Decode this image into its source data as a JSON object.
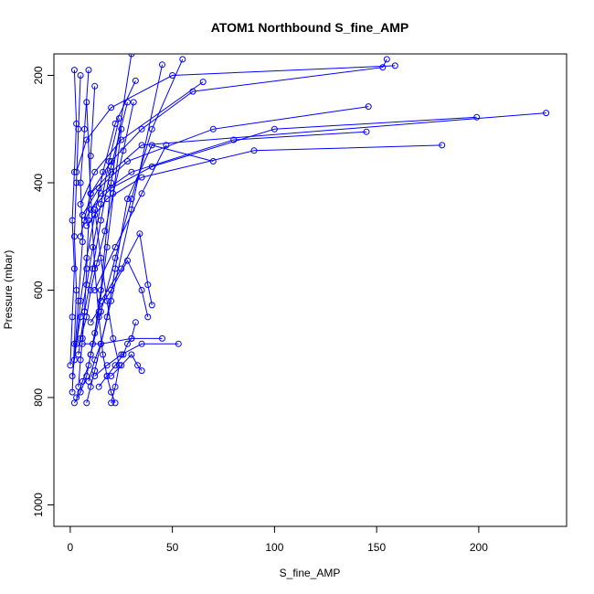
{
  "chart_data": {
    "type": "line",
    "title": "ATOM1 Northbound S_fine_AMP",
    "xlabel": "S_fine_AMP",
    "ylabel": "Pressure (mbar)",
    "xlim": [
      -8,
      243
    ],
    "ylim": [
      1040,
      160
    ],
    "y_reversed": true,
    "xticks": [
      0,
      50,
      100,
      150,
      200
    ],
    "yticks": [
      200,
      400,
      600,
      800,
      1000
    ],
    "grid": false,
    "legend": "none",
    "colors": {
      "series": "#0000ff",
      "axis": "#000000",
      "background": "#ffffff"
    },
    "series": [
      {
        "x": [
          2,
          5,
          8,
          10,
          12,
          15,
          20,
          30
        ],
        "y": [
          810,
          790,
          760,
          720,
          680,
          600,
          400,
          160
        ]
      },
      {
        "x": [
          3,
          6,
          9,
          11,
          14,
          18,
          25
        ],
        "y": [
          800,
          770,
          740,
          700,
          640,
          520,
          300
        ]
      },
      {
        "x": [
          8,
          10,
          12,
          15,
          20,
          30,
          45
        ],
        "y": [
          810,
          780,
          750,
          700,
          620,
          450,
          180
        ]
      },
      {
        "x": [
          22,
          20,
          18,
          16,
          14,
          12,
          10,
          8
        ],
        "y": [
          810,
          790,
          760,
          720,
          650,
          560,
          420,
          250
        ]
      },
      {
        "x": [
          1,
          2,
          3,
          2,
          3,
          4,
          5
        ],
        "y": [
          790,
          700,
          600,
          500,
          400,
          300,
          200
        ]
      },
      {
        "x": [
          4,
          5,
          6,
          7,
          8,
          9,
          10,
          12
        ],
        "y": [
          780,
          730,
          690,
          640,
          560,
          470,
          350,
          220
        ]
      },
      {
        "x": [
          9,
          12,
          15,
          18,
          22,
          28,
          40,
          70
        ],
        "y": [
          770,
          730,
          700,
          650,
          560,
          430,
          330,
          360
        ]
      },
      {
        "x": [
          12,
          18,
          25,
          35,
          53
        ],
        "y": [
          760,
          740,
          720,
          700,
          700
        ]
      },
      {
        "x": [
          6,
          15,
          30,
          45
        ],
        "y": [
          700,
          700,
          690,
          690
        ]
      },
      {
        "x": [
          5,
          10,
          20,
          35,
          233
        ],
        "y": [
          500,
          420,
          380,
          330,
          270
        ]
      },
      {
        "x": [
          10,
          20,
          40,
          100,
          199
        ],
        "y": [
          450,
          410,
          370,
          300,
          278
        ]
      },
      {
        "x": [
          8,
          18,
          35,
          90,
          182
        ],
        "y": [
          480,
          430,
          390,
          340,
          330
        ]
      },
      {
        "x": [
          7,
          15,
          30,
          80,
          145
        ],
        "y": [
          470,
          420,
          380,
          320,
          305
        ]
      },
      {
        "x": [
          6,
          14,
          28,
          70,
          146
        ],
        "y": [
          460,
          410,
          360,
          300,
          258
        ]
      },
      {
        "x": [
          5,
          12,
          25,
          65
        ],
        "y": [
          440,
          380,
          320,
          212
        ]
      },
      {
        "x": [
          10,
          20,
          35,
          60,
          153,
          155
        ],
        "y": [
          420,
          360,
          300,
          230,
          185,
          170
        ]
      },
      {
        "x": [
          3,
          8,
          20,
          50,
          159
        ],
        "y": [
          380,
          320,
          260,
          200,
          182
        ]
      },
      {
        "x": [
          12,
          22,
          35,
          47
        ],
        "y": [
          600,
          520,
          420,
          330
        ]
      },
      {
        "x": [
          15,
          25,
          34,
          38,
          40
        ],
        "y": [
          620,
          560,
          495,
          590,
          628
        ]
      },
      {
        "x": [
          10,
          20,
          28,
          35,
          38
        ],
        "y": [
          660,
          600,
          545,
          600,
          650
        ]
      },
      {
        "x": [
          20,
          25,
          30,
          33,
          35
        ],
        "y": [
          760,
          740,
          720,
          740,
          750
        ]
      },
      {
        "x": [
          14,
          18,
          22,
          26,
          28,
          30,
          32
        ],
        "y": [
          780,
          760,
          740,
          720,
          700,
          690,
          660
        ]
      },
      {
        "x": [
          0,
          1,
          2,
          1,
          2,
          3,
          2
        ],
        "y": [
          740,
          650,
          560,
          470,
          380,
          290,
          190
        ]
      },
      {
        "x": [
          2,
          4,
          6,
          5,
          7,
          9
        ],
        "y": [
          730,
          620,
          510,
          400,
          300,
          190
        ]
      },
      {
        "x": [
          3,
          5,
          8,
          12,
          16,
          22,
          32
        ],
        "y": [
          700,
          620,
          540,
          460,
          380,
          290,
          210
        ]
      },
      {
        "x": [
          4,
          7,
          11,
          15,
          20,
          28
        ],
        "y": [
          720,
          640,
          560,
          470,
          370,
          250
        ]
      },
      {
        "x": [
          10,
          15,
          22,
          30,
          40,
          55
        ],
        "y": [
          720,
          640,
          540,
          430,
          300,
          170
        ]
      },
      {
        "x": [
          1,
          3,
          5,
          8,
          11,
          15,
          19,
          24
        ],
        "y": [
          760,
          700,
          650,
          590,
          520,
          440,
          360,
          280
        ]
      },
      {
        "x": [
          20,
          22,
          24,
          21,
          18,
          15,
          12
        ],
        "y": [
          810,
          780,
          740,
          690,
          620,
          540,
          450
        ]
      },
      {
        "x": [
          5,
          8,
          10,
          13,
          17,
          21,
          26,
          31
        ],
        "y": [
          690,
          650,
          600,
          550,
          490,
          420,
          340,
          250
        ]
      }
    ]
  }
}
